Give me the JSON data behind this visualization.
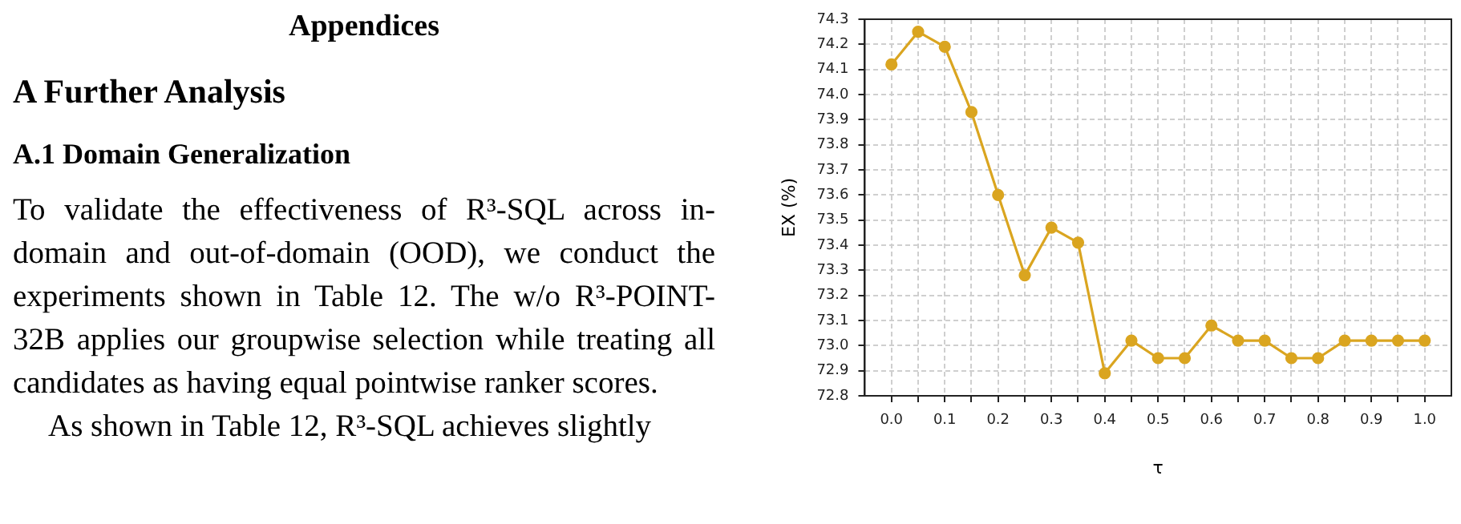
{
  "chart_data": {
    "type": "line",
    "xlabel": "τ",
    "ylabel": "EX (%)",
    "x": [
      0,
      0.05,
      0.1,
      0.15,
      0.2,
      0.25,
      0.3,
      0.35,
      0.4,
      0.45,
      0.5,
      0.55,
      0.6,
      0.65,
      0.7,
      0.75,
      0.8,
      0.85,
      0.9,
      0.95,
      1.0
    ],
    "series": [
      {
        "color": "#daa520",
        "values": [
          74.12,
          74.25,
          74.19,
          73.93,
          73.6,
          73.28,
          73.47,
          73.41,
          72.89,
          73.02,
          72.95,
          72.95,
          73.08,
          73.02,
          73.02,
          72.95,
          72.95,
          73.02,
          73.02,
          73.02,
          73.02
        ]
      }
    ],
    "xlim": [
      -0.05,
      1.05
    ],
    "xticks": [
      {
        "value": 0,
        "label": "0.0"
      },
      {
        "value": 0.05,
        "label": null
      },
      0.1,
      {
        "value": 0.15,
        "label": null
      },
      0.2,
      {
        "value": 0.25,
        "label": null
      },
      0.3,
      {
        "value": 0.35,
        "label": null
      },
      0.4,
      {
        "value": 0.45,
        "label": null
      },
      0.5,
      {
        "value": 0.55,
        "label": null
      },
      0.6,
      {
        "value": 0.65,
        "label": null
      },
      0.7,
      {
        "value": 0.75,
        "label": null
      },
      0.8,
      {
        "value": 0.85,
        "label": null
      },
      0.9,
      {
        "value": 0.95,
        "label": null
      },
      {
        "value": 1,
        "label": "1.0"
      }
    ],
    "ylim": [
      72.8,
      74.3
    ],
    "yticks": [
      72.8,
      72.9,
      {
        "value": 73,
        "label": "73.0"
      },
      73.1,
      73.2,
      73.3,
      73.4,
      73.5,
      73.6,
      73.7,
      73.8,
      73.9,
      {
        "value": 74,
        "label": "74.0"
      },
      74.1,
      74.2,
      74.3
    ],
    "grid": true,
    "legend": false,
    "marker": "circle",
    "line_style": "solid",
    "annotations": [
      "Appendices",
      "A Further Analysis",
      "A.1 Domain Generalization",
      "To validate the effectiveness of R³-SQL across in-domain and out-of-domain (OOD), we conduct the experiments shown in Table 12. The w/o R³-POINT-32B applies our groupwise selection while treating all candidates as having equal pointwise ranker scores.",
      "As shown in Table 12, R³-SQL achieves slightly"
    ]
  }
}
